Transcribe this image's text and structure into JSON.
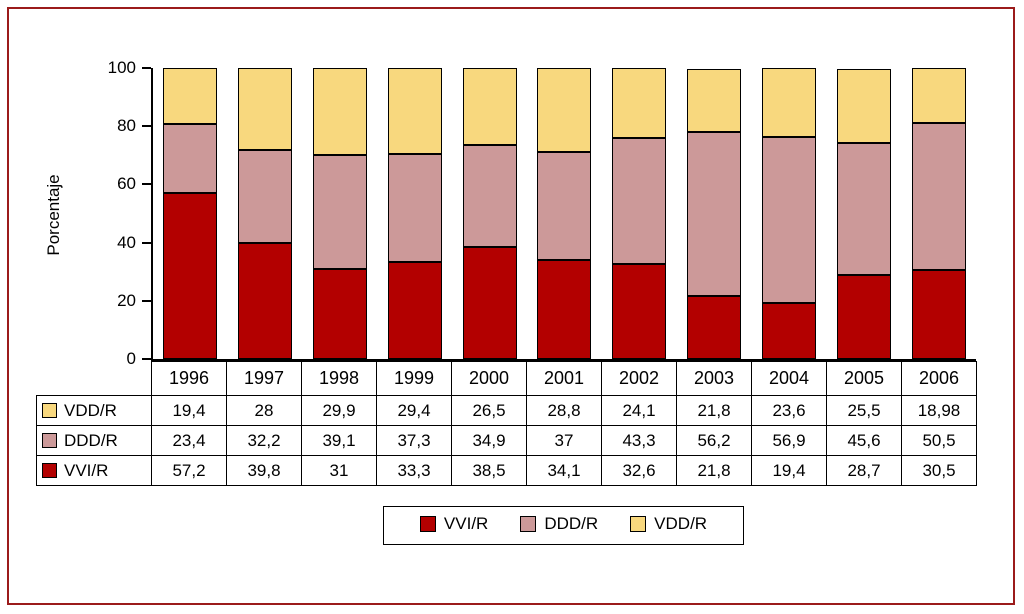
{
  "chart_data": {
    "type": "bar",
    "stacked": true,
    "title": "",
    "xlabel": "",
    "ylabel": "Porcentaje",
    "ylim": [
      0,
      100
    ],
    "yticks": [
      0,
      20,
      40,
      60,
      80,
      100
    ],
    "grid": false,
    "legend_position": "bottom",
    "categories": [
      "1996",
      "1997",
      "1998",
      "1999",
      "2000",
      "2001",
      "2002",
      "2003",
      "2004",
      "2005",
      "2006"
    ],
    "series": [
      {
        "name": "VVI/R",
        "color": "#b30000",
        "values": [
          57.2,
          39.8,
          31,
          33.3,
          38.5,
          34.1,
          32.6,
          21.8,
          19.4,
          28.7,
          30.5
        ]
      },
      {
        "name": "DDD/R",
        "color": "#cc9999",
        "values": [
          23.4,
          32.2,
          39.1,
          37.3,
          34.9,
          37,
          43.3,
          56.2,
          56.9,
          45.6,
          50.5
        ]
      },
      {
        "name": "VDD/R",
        "color": "#f8d87e",
        "values": [
          19.4,
          28,
          29.9,
          29.4,
          26.5,
          28.8,
          24.1,
          21.8,
          23.6,
          25.5,
          18.98
        ]
      }
    ]
  },
  "table": {
    "header_years": [
      "1996",
      "1997",
      "1998",
      "1999",
      "2000",
      "2001",
      "2002",
      "2003",
      "2004",
      "2005",
      "2006"
    ],
    "rows": [
      {
        "label": "VDD/R",
        "color": "#f8d87e",
        "values": [
          "19,4",
          "28",
          "29,9",
          "29,4",
          "26,5",
          "28,8",
          "24,1",
          "21,8",
          "23,6",
          "25,5",
          "18,98"
        ]
      },
      {
        "label": "DDD/R",
        "color": "#cc9999",
        "values": [
          "23,4",
          "32,2",
          "39,1",
          "37,3",
          "34,9",
          "37",
          "43,3",
          "56,2",
          "56,9",
          "45,6",
          "50,5"
        ]
      },
      {
        "label": "VVI/R",
        "color": "#b30000",
        "values": [
          "57,2",
          "39,8",
          "31",
          "33,3",
          "38,5",
          "34,1",
          "32,6",
          "21,8",
          "19,4",
          "28,7",
          "30,5"
        ]
      }
    ]
  },
  "legend": {
    "items": [
      {
        "label": "VVI/R",
        "color": "#b30000"
      },
      {
        "label": "DDD/R",
        "color": "#cc9999"
      },
      {
        "label": "VDD/R",
        "color": "#f8d87e"
      }
    ]
  },
  "colors": {
    "frame_border": "#9b1b1b",
    "axis": "#000000"
  }
}
